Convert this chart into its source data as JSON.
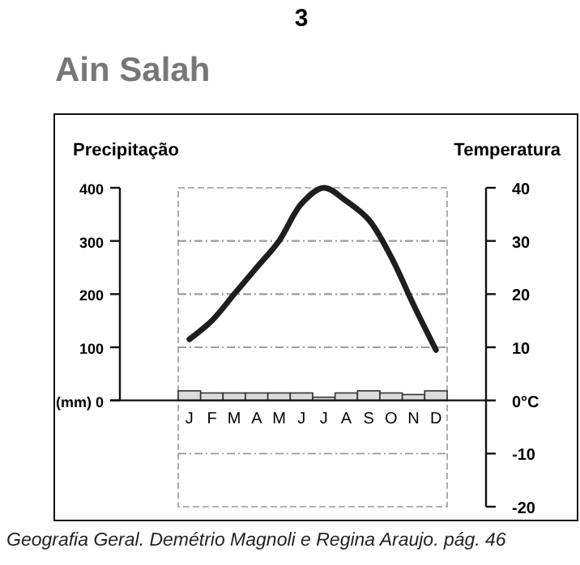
{
  "chart_data": {
    "type": "bar",
    "title": "Ain Salah",
    "ylabel": "Precipitação",
    "y2label": "Temperatura",
    "annotations": [
      "3",
      "Geografia Geral. Demétrio Magnoli e Regina Araujo. pág. 46"
    ],
    "categories": [
      "J",
      "F",
      "M",
      "A",
      "M",
      "J",
      "J",
      "A",
      "S",
      "O",
      "N",
      "D"
    ],
    "series": [
      {
        "color": "#dcdcdc",
        "values": [
          18,
          14,
          14,
          14,
          14,
          14,
          6,
          14,
          18,
          14,
          11,
          18
        ]
      },
      {
        "type": "line",
        "axis": "y2",
        "color": "#1e1e1e",
        "values": [
          11.5,
          15,
          20,
          25,
          30,
          37,
          40,
          37.5,
          34,
          27,
          18,
          9.5
        ]
      }
    ],
    "ylim": [
      -200,
      400
    ],
    "yticks": [
      {
        "value": 0,
        "label": "(mm) 0"
      },
      100,
      200,
      300,
      400
    ],
    "y2lim": [
      -20,
      40
    ],
    "y2ticks": [
      -20,
      -10,
      {
        "value": 0,
        "label": "0°C"
      },
      10,
      20,
      30,
      40
    ],
    "grid": true,
    "marker": "none",
    "line_style": "solid"
  }
}
